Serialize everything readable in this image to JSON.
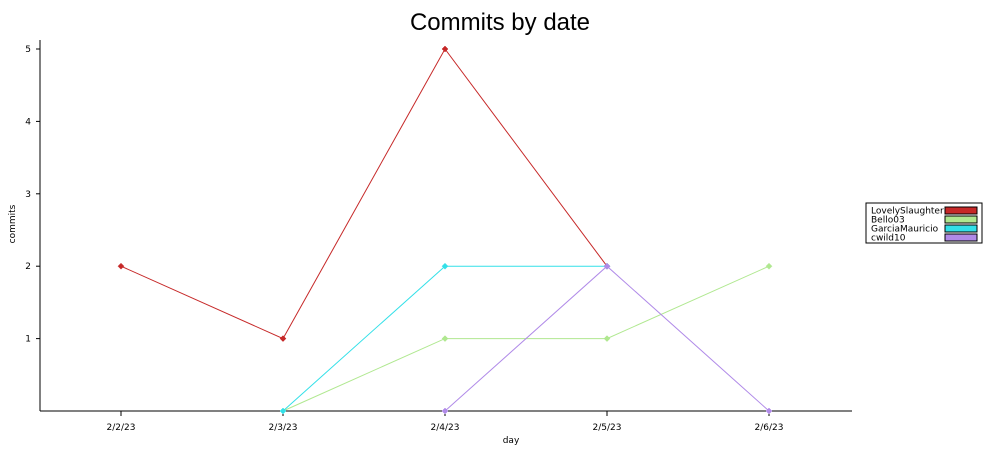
{
  "chart_data": {
    "type": "line",
    "title": "Commits by date",
    "xlabel": "day",
    "ylabel": "commits",
    "categories": [
      "2/2/23",
      "2/3/23",
      "2/4/23",
      "2/5/23",
      "2/6/23"
    ],
    "yticks": [
      1,
      2,
      3,
      4,
      5
    ],
    "ylim": [
      0,
      5
    ],
    "grid": false,
    "legend_position": "right",
    "series": [
      {
        "name": "LovelySlaughter",
        "color": "#c62828",
        "values": [
          2,
          1,
          5,
          2,
          null
        ]
      },
      {
        "name": "Bello03",
        "color": "#b0e890",
        "values": [
          null,
          0,
          1,
          1,
          2
        ]
      },
      {
        "name": "GarciaMauricio",
        "color": "#33e0e8",
        "values": [
          null,
          0,
          2,
          2,
          null
        ]
      },
      {
        "name": "cwild10",
        "color": "#b08ae8",
        "values": [
          null,
          null,
          0,
          2,
          0
        ]
      }
    ]
  }
}
